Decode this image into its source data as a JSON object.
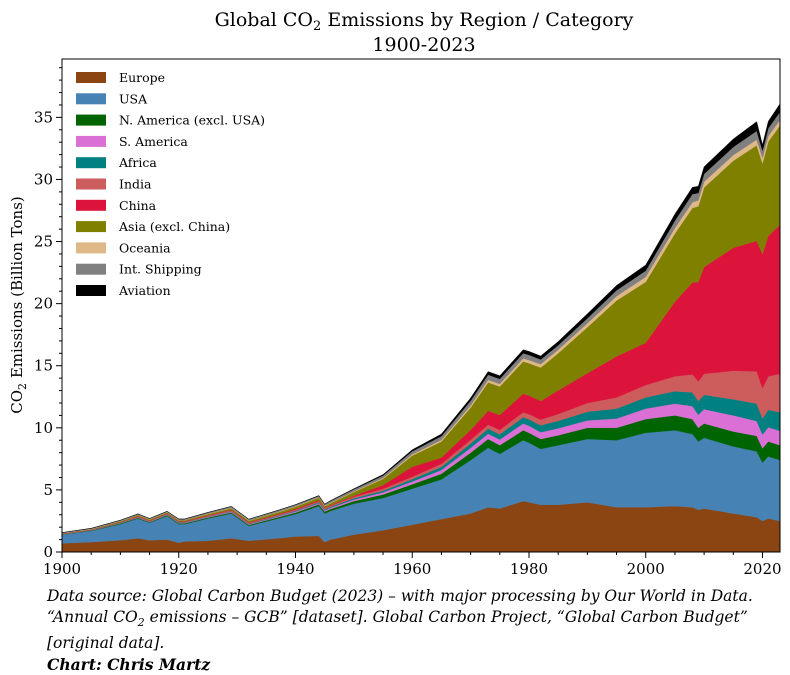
{
  "chart_data": {
    "type": "area",
    "title_line1_pre": "Global CO",
    "title_line1_sub": "2",
    "title_line1_post": " Emissions by Region / Category",
    "title_line2": "1900-2023",
    "ylabel_pre": "CO",
    "ylabel_sub": "2",
    "ylabel_post": " Emissions (Billion Tons)",
    "xlim": [
      1900,
      2023
    ],
    "ylim": [
      0,
      39.7
    ],
    "xticks": [
      1900,
      1920,
      1940,
      1960,
      1980,
      2000,
      2020
    ],
    "yticks": [
      0,
      5,
      10,
      15,
      20,
      25,
      30,
      35
    ],
    "legend_position": "upper-left",
    "x": [
      1900,
      1905,
      1910,
      1913,
      1915,
      1918,
      1920,
      1921,
      1925,
      1929,
      1932,
      1937,
      1940,
      1944,
      1945,
      1946,
      1950,
      1955,
      1960,
      1965,
      1970,
      1973,
      1975,
      1979,
      1980,
      1982,
      1985,
      1990,
      1995,
      2000,
      2005,
      2008,
      2009,
      2010,
      2015,
      2019,
      2020,
      2021,
      2023
    ],
    "series": [
      {
        "name": "Europe",
        "color": "#8B4513",
        "values": [
          0.7,
          0.8,
          0.95,
          1.1,
          0.95,
          1.0,
          0.75,
          0.85,
          0.9,
          1.1,
          0.9,
          1.1,
          1.25,
          1.3,
          0.8,
          1.0,
          1.4,
          1.75,
          2.2,
          2.65,
          3.1,
          3.6,
          3.5,
          4.1,
          4.0,
          3.8,
          3.8,
          4.0,
          3.6,
          3.6,
          3.7,
          3.6,
          3.4,
          3.5,
          3.1,
          2.8,
          2.5,
          2.7,
          2.5
        ]
      },
      {
        "name": "USA",
        "color": "#4682B4",
        "values": [
          0.7,
          0.9,
          1.3,
          1.6,
          1.4,
          1.9,
          1.5,
          1.4,
          1.8,
          2.0,
          1.2,
          1.6,
          1.8,
          2.4,
          2.3,
          2.3,
          2.5,
          2.6,
          2.9,
          3.2,
          4.3,
          4.8,
          4.4,
          4.9,
          4.8,
          4.5,
          4.8,
          5.1,
          5.4,
          6.0,
          6.1,
          5.9,
          5.5,
          5.7,
          5.4,
          5.3,
          4.7,
          5.0,
          4.9
        ]
      },
      {
        "name": "N. America (excl. USA)",
        "color": "#006400",
        "values": [
          0.02,
          0.03,
          0.05,
          0.06,
          0.06,
          0.07,
          0.07,
          0.07,
          0.08,
          0.09,
          0.08,
          0.1,
          0.12,
          0.15,
          0.15,
          0.16,
          0.2,
          0.28,
          0.35,
          0.45,
          0.6,
          0.7,
          0.7,
          0.8,
          0.8,
          0.8,
          0.8,
          0.9,
          1.0,
          1.1,
          1.2,
          1.2,
          1.1,
          1.15,
          1.2,
          1.25,
          1.15,
          1.2,
          1.2
        ]
      },
      {
        "name": "S. America",
        "color": "#DA70D6",
        "values": [
          0.01,
          0.02,
          0.03,
          0.04,
          0.03,
          0.04,
          0.04,
          0.04,
          0.05,
          0.06,
          0.05,
          0.07,
          0.08,
          0.09,
          0.1,
          0.1,
          0.13,
          0.18,
          0.23,
          0.3,
          0.38,
          0.43,
          0.46,
          0.55,
          0.56,
          0.55,
          0.56,
          0.6,
          0.75,
          0.85,
          0.95,
          1.05,
          1.05,
          1.15,
          1.3,
          1.2,
          1.1,
          1.15,
          1.15
        ]
      },
      {
        "name": "Africa",
        "color": "#008080",
        "values": [
          0.01,
          0.01,
          0.02,
          0.02,
          0.02,
          0.03,
          0.03,
          0.03,
          0.03,
          0.04,
          0.04,
          0.05,
          0.06,
          0.07,
          0.07,
          0.08,
          0.1,
          0.13,
          0.18,
          0.25,
          0.35,
          0.4,
          0.42,
          0.5,
          0.52,
          0.55,
          0.6,
          0.7,
          0.8,
          0.9,
          1.0,
          1.1,
          1.1,
          1.15,
          1.3,
          1.4,
          1.3,
          1.4,
          1.5
        ]
      },
      {
        "name": "India",
        "color": "#CD5C5C",
        "values": [
          0.02,
          0.03,
          0.04,
          0.05,
          0.05,
          0.05,
          0.05,
          0.05,
          0.06,
          0.07,
          0.07,
          0.08,
          0.09,
          0.09,
          0.1,
          0.1,
          0.12,
          0.15,
          0.2,
          0.25,
          0.3,
          0.33,
          0.35,
          0.4,
          0.42,
          0.46,
          0.55,
          0.7,
          0.9,
          1.0,
          1.2,
          1.45,
          1.6,
          1.7,
          2.3,
          2.6,
          2.45,
          2.7,
          3.1
        ]
      },
      {
        "name": "China",
        "color": "#DC143C",
        "values": [
          0.01,
          0.01,
          0.02,
          0.03,
          0.03,
          0.03,
          0.03,
          0.03,
          0.04,
          0.05,
          0.05,
          0.05,
          0.07,
          0.08,
          0.05,
          0.04,
          0.08,
          0.3,
          0.8,
          0.5,
          0.8,
          1.1,
          1.2,
          1.5,
          1.5,
          1.5,
          1.9,
          2.4,
          3.3,
          3.4,
          6.0,
          7.4,
          8.0,
          8.6,
          9.9,
          10.5,
          10.8,
          11.3,
          12.0
        ]
      },
      {
        "name": "Asia (excl. China)",
        "color": "#808000",
        "values": [
          0.03,
          0.04,
          0.06,
          0.07,
          0.07,
          0.07,
          0.08,
          0.08,
          0.1,
          0.12,
          0.12,
          0.15,
          0.18,
          0.2,
          0.1,
          0.15,
          0.3,
          0.5,
          0.9,
          1.3,
          1.8,
          2.3,
          2.3,
          2.6,
          2.6,
          2.7,
          3.0,
          3.7,
          4.5,
          4.9,
          5.5,
          6.0,
          6.1,
          6.4,
          7.0,
          7.7,
          7.3,
          7.6,
          8.0
        ]
      },
      {
        "name": "Oceania",
        "color": "#DEB887",
        "values": [
          0.01,
          0.01,
          0.02,
          0.02,
          0.02,
          0.02,
          0.02,
          0.02,
          0.03,
          0.03,
          0.03,
          0.03,
          0.04,
          0.04,
          0.04,
          0.04,
          0.05,
          0.07,
          0.1,
          0.13,
          0.17,
          0.2,
          0.21,
          0.24,
          0.25,
          0.26,
          0.28,
          0.32,
          0.36,
          0.4,
          0.44,
          0.46,
          0.46,
          0.47,
          0.46,
          0.46,
          0.44,
          0.45,
          0.44
        ]
      },
      {
        "name": "Int. Shipping",
        "color": "#808080",
        "values": [
          0.05,
          0.06,
          0.07,
          0.08,
          0.07,
          0.07,
          0.09,
          0.09,
          0.1,
          0.11,
          0.1,
          0.12,
          0.12,
          0.1,
          0.12,
          0.14,
          0.17,
          0.2,
          0.25,
          0.3,
          0.38,
          0.42,
          0.4,
          0.42,
          0.42,
          0.38,
          0.36,
          0.4,
          0.46,
          0.5,
          0.6,
          0.66,
          0.6,
          0.63,
          0.65,
          0.7,
          0.6,
          0.63,
          0.65
        ]
      },
      {
        "name": "Aviation",
        "color": "#000000",
        "values": [
          0,
          0,
          0,
          0,
          0,
          0,
          0,
          0,
          0,
          0,
          0,
          0.01,
          0.01,
          0.03,
          0.03,
          0.03,
          0.05,
          0.08,
          0.12,
          0.17,
          0.22,
          0.25,
          0.26,
          0.28,
          0.28,
          0.28,
          0.3,
          0.36,
          0.4,
          0.46,
          0.52,
          0.55,
          0.54,
          0.57,
          0.65,
          0.75,
          0.45,
          0.55,
          0.65
        ]
      }
    ]
  },
  "footer": {
    "source_text_1": "Data source: Global Carbon Budget (2023) – with major processing by Our World in Data. “Annual CO",
    "source_sub": "2",
    "source_text_2": " emissions – GCB” [dataset]. Global Carbon Project, “Global Carbon Budget” [original data].",
    "credit": "Chart: Chris Martz"
  }
}
